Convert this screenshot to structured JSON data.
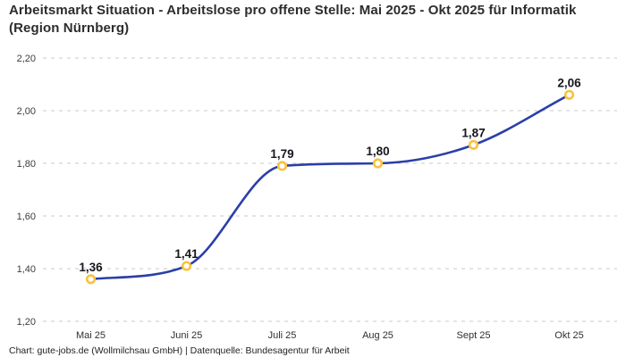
{
  "title": "Arbeitsmarkt Situation - Arbeitslose pro offene Stelle: Mai 2025 - Okt 2025 für Informatik (Region Nürnberg)",
  "footer": "Chart: gute-jobs.de (Wollmilchsau GmbH) | Datenquelle: Bundesagentur für Arbeit",
  "colors": {
    "line": "#2a3fa8",
    "marker_ring": "#f9c23c",
    "marker_fill": "#ffffff",
    "grid": "#c9c9c9",
    "title_text": "#2d2d2d",
    "data_label_text": "#16161d",
    "tick_text": "#3c3c3c",
    "category_text": "#2f2f2f",
    "background": "#ffffff"
  },
  "chart_data": {
    "type": "line",
    "title": "Arbeitsmarkt Situation - Arbeitslose pro offene Stelle: Mai 2025 - Okt 2025 für Informatik (Region Nürnberg)",
    "categories": [
      "Mai 25",
      "Juni 25",
      "Juli 25",
      "Aug 25",
      "Sept 25",
      "Okt 25"
    ],
    "values": [
      1.36,
      1.41,
      1.79,
      1.8,
      1.87,
      2.06
    ],
    "value_labels": [
      "1,36",
      "1,41",
      "1,79",
      "1,80",
      "1,87",
      "2,06"
    ],
    "xlabel": "",
    "ylabel": "",
    "ylim": [
      1.2,
      2.2
    ],
    "yticks": [
      1.2,
      1.4,
      1.6,
      1.8,
      2.0,
      2.2
    ],
    "ytick_labels": [
      "1,20",
      "1,40",
      "1,60",
      "1,80",
      "2,00",
      "2,20"
    ],
    "grid": "horizontal-dashed",
    "legend": "none",
    "curve": "monotone-spline",
    "marker": "open-circle"
  }
}
